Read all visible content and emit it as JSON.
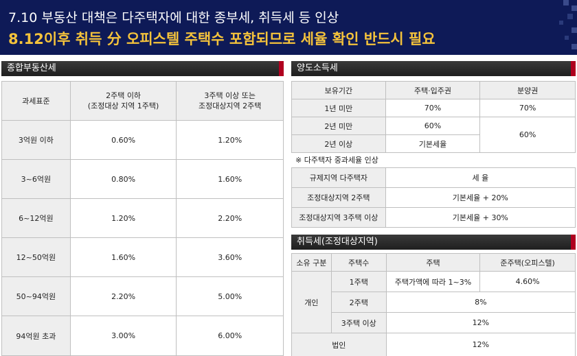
{
  "banner": {
    "line1": "7.10 부동산 대책은 다주택자에 대한 종부세, 취득세 등 인상",
    "line2": "8.12이후 취득 分 오피스텔 주택수 포함되므로 세율 확인 반드시 필요"
  },
  "jongbu": {
    "title": "종합부동산세",
    "headers": [
      "과세표준",
      "2주택 이하\n(조정대상 지역 1주택)",
      "3주택 이상 또는\n조정대상지역 2주택"
    ],
    "rows": [
      [
        "3억원 이하",
        "0.60%",
        "1.20%"
      ],
      [
        "3~6억원",
        "0.80%",
        "1.60%"
      ],
      [
        "6~12억원",
        "1.20%",
        "2.20%"
      ],
      [
        "12~50억원",
        "1.60%",
        "3.60%"
      ],
      [
        "50~94억원",
        "2.20%",
        "5.00%"
      ],
      [
        "94억원 초과",
        "3.00%",
        "6.00%"
      ]
    ]
  },
  "yangdo": {
    "title": "양도소득세",
    "headers": [
      "보유기간",
      "주택·입주권",
      "분양권"
    ],
    "rows": [
      {
        "period": "1년 미만",
        "house": "70%",
        "presale": "70%"
      },
      {
        "period": "2년 미만",
        "house": "60%",
        "presale": "60%"
      },
      {
        "period": "2년 이상",
        "house": "기본세율"
      }
    ],
    "note": "※ 다주택자 중과세율 인상",
    "heavy_headers": [
      "규제지역 다주택자",
      "세 율"
    ],
    "heavy_rows": [
      [
        "조정대상지역 2주택",
        "기본세율 + 20%"
      ],
      [
        "조정대상지역 3주택 이상",
        "기본세율 + 30%"
      ]
    ]
  },
  "chwideuk": {
    "title": "취득세(조정대상지역)",
    "headers": [
      "소유 구분",
      "주택수",
      "주택",
      "준주택(오피스텔)"
    ],
    "individual_label": "개인",
    "rows": [
      {
        "count": "1주택",
        "house": "주택가액에 따라 1~3%",
        "officetel": "4.60%"
      },
      {
        "count": "2주택",
        "merged": "8%"
      },
      {
        "count": "3주택 이상",
        "merged": "12%"
      }
    ],
    "corp_label": "법인",
    "corp_value": "12%"
  }
}
